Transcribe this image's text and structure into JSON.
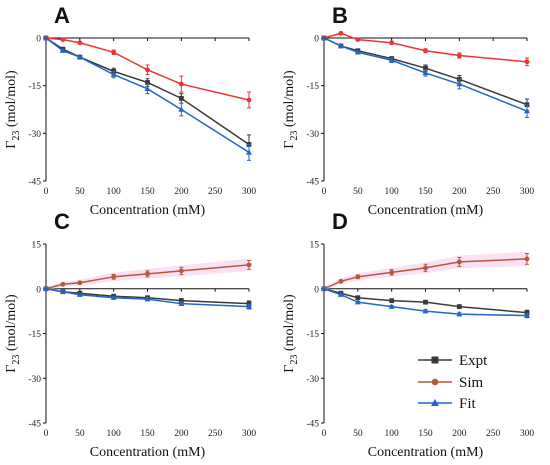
{
  "legend": {
    "items": [
      {
        "label": "Expt",
        "color": "#3a3a3a",
        "marker": "square"
      },
      {
        "label": "Sim",
        "color": "#b5593a",
        "marker": "circle"
      },
      {
        "label": "Fit",
        "color": "#2266cc",
        "marker": "triangle"
      }
    ]
  },
  "chart_data": [
    {
      "panel": "A",
      "type": "line",
      "xlabel": "Concentration (mM)",
      "ylabel": "Γ23 (mol/mol)",
      "ylabel_main": "Γ",
      "ylabel_sub": "23",
      "ylabel_rest": " (mol/mol)",
      "xlim": [
        0,
        300
      ],
      "ylim": [
        -45,
        0
      ],
      "xticks": [
        0,
        50,
        100,
        150,
        200,
        250,
        300
      ],
      "yticks": [
        0,
        -15,
        -30,
        -45
      ],
      "x": [
        0,
        25,
        50,
        100,
        150,
        200,
        300
      ],
      "series": [
        {
          "name": "Expt",
          "color": "#3a3a3a",
          "marker": "square",
          "values": [
            0,
            -3.5,
            -6,
            -10.5,
            -14,
            -19,
            -33.5
          ],
          "errors": [
            0,
            0.3,
            0.4,
            1,
            1.2,
            1.5,
            3
          ]
        },
        {
          "name": "Sim",
          "color": "#ee3333",
          "marker": "circle",
          "values": [
            0,
            -0.5,
            -1.5,
            -4.5,
            -10,
            -14.5,
            -19.5
          ],
          "errors": [
            0,
            0.3,
            0.4,
            0.7,
            1.5,
            2.5,
            2.5
          ]
        },
        {
          "name": "Fit",
          "color": "#2266cc",
          "marker": "triangle",
          "values": [
            0,
            -4,
            -6,
            -11.5,
            -16,
            -22.5,
            -36
          ],
          "errors": [
            0,
            0.3,
            0.4,
            1,
            1.5,
            2,
            2.5
          ]
        }
      ],
      "band_series": null
    },
    {
      "panel": "B",
      "type": "line",
      "xlabel": "Concentration (mM)",
      "ylabel": "Γ23 (mol/mol)",
      "ylabel_main": "Γ",
      "ylabel_sub": "23",
      "ylabel_rest": " (mol/mol)",
      "xlim": [
        0,
        300
      ],
      "ylim": [
        -45,
        0
      ],
      "xticks": [
        0,
        50,
        100,
        150,
        200,
        250,
        300
      ],
      "yticks": [
        0,
        -15,
        -30,
        -45
      ],
      "x": [
        0,
        25,
        50,
        100,
        150,
        200,
        300
      ],
      "series": [
        {
          "name": "Expt",
          "color": "#3a3a3a",
          "marker": "square",
          "values": [
            0,
            -2.5,
            -4,
            -6.5,
            -9.5,
            -13,
            -21
          ],
          "errors": [
            0,
            0.3,
            0.4,
            0.6,
            1,
            1.2,
            1.8
          ]
        },
        {
          "name": "Sim",
          "color": "#ee3333",
          "marker": "circle",
          "values": [
            0,
            1.5,
            -0.5,
            -1.5,
            -4,
            -5.5,
            -7.5
          ],
          "errors": [
            0,
            0.4,
            0.4,
            0.5,
            0.6,
            0.8,
            1.2
          ]
        },
        {
          "name": "Fit",
          "color": "#2266cc",
          "marker": "triangle",
          "values": [
            0,
            -2.5,
            -4.5,
            -7,
            -11,
            -14.5,
            -23
          ],
          "errors": [
            0,
            0.3,
            0.4,
            0.7,
            1,
            1.5,
            2
          ]
        }
      ],
      "band_series": null
    },
    {
      "panel": "C",
      "type": "line",
      "xlabel": "Concentration (mM)",
      "ylabel": "Γ23 (mol/mol)",
      "ylabel_main": "Γ",
      "ylabel_sub": "23",
      "ylabel_rest": " (mol/mol)",
      "xlim": [
        0,
        300
      ],
      "ylim": [
        -45,
        15
      ],
      "xticks": [
        0,
        50,
        100,
        150,
        200,
        250,
        300
      ],
      "yticks": [
        15,
        0,
        -15,
        -30,
        -45
      ],
      "x": [
        0,
        25,
        50,
        100,
        150,
        200,
        300
      ],
      "series": [
        {
          "name": "Expt",
          "color": "#3a3a3a",
          "marker": "square",
          "values": [
            0,
            -1,
            -1.5,
            -2.5,
            -3,
            -4,
            -5
          ],
          "errors": [
            0,
            0.2,
            0.3,
            0.4,
            0.5,
            0.7,
            0.9
          ]
        },
        {
          "name": "Sim",
          "color": "#b5593a",
          "marker": "circle",
          "values": [
            0,
            1.5,
            2,
            4,
            5,
            6,
            8
          ],
          "errors": [
            0,
            0.3,
            0.4,
            0.8,
            1,
            1.2,
            1.5
          ]
        },
        {
          "name": "Fit",
          "color": "#2266cc",
          "marker": "triangle",
          "values": [
            0,
            -1,
            -2,
            -3,
            -3.5,
            -5,
            -6
          ],
          "errors": [
            0,
            0.2,
            0.3,
            0.4,
            0.5,
            0.6,
            0.8
          ]
        }
      ],
      "band_series": "Sim"
    },
    {
      "panel": "D",
      "type": "line",
      "xlabel": "Concentration (mM)",
      "ylabel": "Γ23 (mol/mol)",
      "ylabel_main": "Γ",
      "ylabel_sub": "23",
      "ylabel_rest": " (mol/mol)",
      "xlim": [
        0,
        300
      ],
      "ylim": [
        -45,
        15
      ],
      "xticks": [
        0,
        50,
        100,
        150,
        200,
        250,
        300
      ],
      "yticks": [
        15,
        0,
        -15,
        -30,
        -45
      ],
      "x": [
        0,
        25,
        50,
        100,
        150,
        200,
        300
      ],
      "series": [
        {
          "name": "Expt",
          "color": "#3a3a3a",
          "marker": "square",
          "values": [
            0,
            -1.5,
            -3,
            -4,
            -4.5,
            -6,
            -8
          ],
          "errors": [
            0,
            0.2,
            0.3,
            0.4,
            0.5,
            0.6,
            0.8
          ]
        },
        {
          "name": "Sim",
          "color": "#b5593a",
          "marker": "circle",
          "values": [
            0,
            2.5,
            4,
            5.5,
            7,
            9,
            10
          ],
          "errors": [
            0,
            0.4,
            0.6,
            0.9,
            1.2,
            1.5,
            1.8
          ]
        },
        {
          "name": "Fit",
          "color": "#2266cc",
          "marker": "triangle",
          "values": [
            0,
            -2,
            -4.5,
            -6,
            -7.5,
            -8.5,
            -9
          ],
          "errors": [
            0,
            0.2,
            0.3,
            0.4,
            0.5,
            0.6,
            0.7
          ]
        }
      ],
      "band_series": "Sim"
    }
  ]
}
